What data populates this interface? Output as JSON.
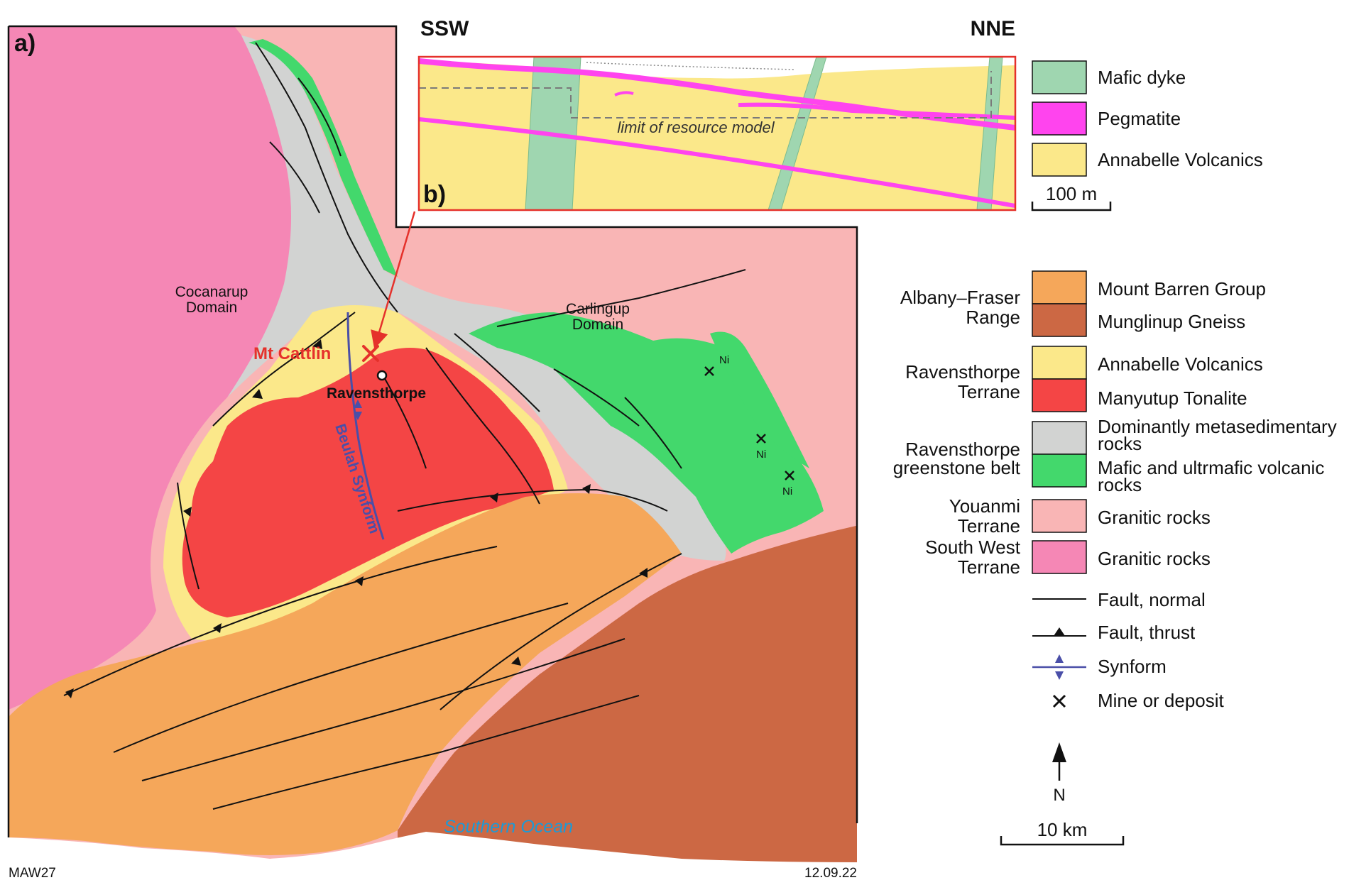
{
  "panel_a": {
    "label": "a)",
    "domains": {
      "cocanarup": [
        "Cocanarup",
        "Domain"
      ],
      "carlingup": [
        "Carlingup",
        "Domain"
      ]
    },
    "mt_cattlin": "Mt Cattlin",
    "ravensthorpe": "Ravensthorpe",
    "beulah": "Beulah Synform",
    "ni": "Ni",
    "ocean": "Southern Ocean"
  },
  "panel_b": {
    "label": "b)",
    "ssw": "SSW",
    "nne": "NNE",
    "limit": "limit of resource model",
    "scale": "100 m",
    "legend": [
      {
        "label": "Mafic dyke",
        "color": "#9fd6b0"
      },
      {
        "label": "Pegmatite",
        "color": "#ff44ee"
      },
      {
        "label": "Annabelle Volcanics",
        "color": "#fbe88a"
      }
    ]
  },
  "legend": {
    "groups": [
      {
        "name": [
          "Albany–Fraser",
          "Range"
        ],
        "items": [
          {
            "label": [
              "Mount Barren Group"
            ],
            "color": "#f5a75a"
          },
          {
            "label": [
              "Munglinup Gneiss"
            ],
            "color": "#cc6844"
          }
        ]
      },
      {
        "name": [
          "Ravensthorpe",
          "Terrane"
        ],
        "items": [
          {
            "label": [
              "Annabelle Volcanics"
            ],
            "color": "#fbe88a"
          },
          {
            "label": [
              "Manyutup Tonalite"
            ],
            "color": "#f44545"
          }
        ]
      },
      {
        "name": [
          "Ravensthorpe",
          "greenstone belt"
        ],
        "items": [
          {
            "label": [
              "Dominantly metasedimentary",
              "rocks"
            ],
            "color": "#d2d3d2"
          },
          {
            "label": [
              "Mafic and ultrmafic volcanic",
              "rocks"
            ],
            "color": "#43d86c"
          }
        ]
      },
      {
        "name": [
          "Youanmi",
          "Terrane"
        ],
        "items": [
          {
            "label": [
              "Granitic rocks"
            ],
            "color": "#f9b5b5"
          }
        ]
      },
      {
        "name": [
          "South West",
          "Terrane"
        ],
        "items": [
          {
            "label": [
              "Granitic rocks"
            ],
            "color": "#f587b5"
          }
        ]
      }
    ],
    "symbols": {
      "fault_normal": "Fault, normal",
      "fault_thrust": "Fault, thrust",
      "synform": "Synform",
      "mine": "Mine or deposit"
    },
    "north": "N",
    "scale": "10 km"
  },
  "footer": {
    "code": "MAW27",
    "date": "12.09.22"
  },
  "colors": {
    "southwest": "#f587b5",
    "youanmi": "#f9b5b5",
    "greenstone_sed": "#d2d3d2",
    "mafic": "#43d86c",
    "annabelle": "#fbe88a",
    "tonalite": "#f44545",
    "mount_barren": "#f5a75a",
    "munglinup": "#cc6844",
    "pegmatite": "#ff44ee",
    "mafic_dyke": "#9fd6b0",
    "mt_cattlin": "#e5312b",
    "synform": "#4a4fa8",
    "ocean_text": "#1c9ad6",
    "arrow": "#e5312b"
  }
}
